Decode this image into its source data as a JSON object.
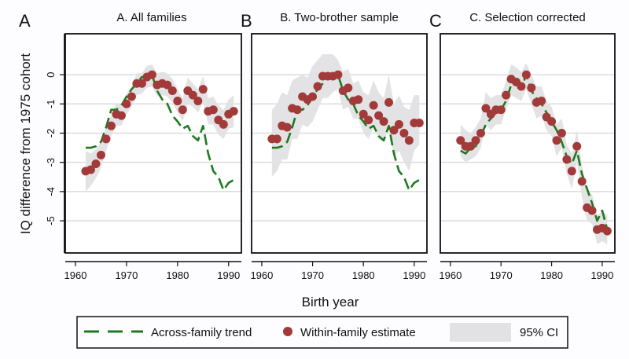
{
  "figure": {
    "ylabel": "IQ difference from 1975 cohort",
    "xlabel": "Birth year"
  },
  "legend": {
    "items": [
      {
        "label": "Across-family trend",
        "kind": "dashed-line",
        "color": "#1e7a1e"
      },
      {
        "label": "Within-family estimate",
        "kind": "marker",
        "color": "#a23a3a"
      },
      {
        "label": "95% CI",
        "kind": "area",
        "color": "#e2e2e4"
      }
    ]
  },
  "chart_data": [
    {
      "type": "line",
      "panel_letter": "A",
      "title": "A. All families",
      "xlabel": "Birth year",
      "ylabel": "IQ difference from 1975 cohort",
      "xlim": [
        1958,
        1992.5
      ],
      "ylim": [
        -6.1,
        1.4
      ],
      "xticks": [
        1960,
        1970,
        1980,
        1990
      ],
      "yticks": [
        0,
        -1,
        -2,
        -3,
        -4,
        -5
      ],
      "grid": true,
      "legend": "bottom",
      "x": [
        1962,
        1963,
        1964,
        1965,
        1966,
        1967,
        1968,
        1969,
        1970,
        1971,
        1972,
        1973,
        1974,
        1975,
        1976,
        1977,
        1978,
        1979,
        1980,
        1981,
        1982,
        1983,
        1984,
        1985,
        1986,
        1987,
        1988,
        1989,
        1990,
        1991
      ],
      "series": [
        {
          "name": "Across-family trend",
          "values": [
            -2.5,
            -2.5,
            -2.45,
            -2.3,
            -1.8,
            -1.2,
            -1.2,
            -1.05,
            -0.75,
            -0.5,
            -0.3,
            -0.08,
            -0.1,
            0,
            -0.55,
            -0.85,
            -1.0,
            -1.4,
            -1.6,
            -1.85,
            -1.75,
            -2.1,
            -2.25,
            -1.75,
            -2.7,
            -3.3,
            -3.5,
            -3.95,
            -3.7,
            -3.6
          ]
        },
        {
          "name": "Within-family estimate",
          "values": [
            -3.3,
            -3.25,
            -3.05,
            -2.75,
            -2.2,
            -1.75,
            -1.35,
            -1.4,
            -1.0,
            -0.75,
            -0.3,
            -0.3,
            -0.08,
            0,
            -0.35,
            -0.3,
            -0.35,
            -0.55,
            -0.9,
            -1.2,
            -0.55,
            -0.7,
            -0.9,
            -0.5,
            -1.25,
            -1.2,
            -1.55,
            -1.7,
            -1.35,
            -1.25
          ]
        },
        {
          "name": "95% CI lower",
          "values": [
            -4.0,
            -3.8,
            -3.55,
            -3.2,
            -2.6,
            -2.1,
            -1.75,
            -1.75,
            -1.35,
            -1.1,
            -0.7,
            -0.65,
            -0.45,
            -0.4,
            -0.75,
            -0.7,
            -0.75,
            -0.95,
            -1.3,
            -1.6,
            -1.0,
            -1.1,
            -1.3,
            -0.95,
            -1.7,
            -1.7,
            -2.05,
            -2.2,
            -1.85,
            -1.8
          ]
        },
        {
          "name": "95% CI upper",
          "values": [
            -2.6,
            -2.7,
            -2.55,
            -2.3,
            -1.8,
            -1.4,
            -0.95,
            -1.05,
            -0.65,
            -0.4,
            0.05,
            0.05,
            0.3,
            0.35,
            0.05,
            0.1,
            0.05,
            -0.15,
            -0.5,
            -0.8,
            -0.1,
            -0.3,
            -0.5,
            -0.05,
            -0.8,
            -0.75,
            -1.05,
            -1.2,
            -0.85,
            -0.7
          ]
        }
      ]
    },
    {
      "type": "line",
      "panel_letter": "B",
      "title": "B. Two-brother sample",
      "xlabel": "Birth year",
      "ylabel": "",
      "xlim": [
        1958,
        1992.5
      ],
      "ylim": [
        -6.1,
        1.4
      ],
      "xticks": [
        1960,
        1970,
        1980,
        1990
      ],
      "yticks": [
        0,
        -1,
        -2,
        -3,
        -4,
        -5
      ],
      "grid": true,
      "legend": "bottom",
      "x": [
        1962,
        1963,
        1964,
        1965,
        1966,
        1967,
        1968,
        1969,
        1970,
        1971,
        1972,
        1973,
        1974,
        1975,
        1976,
        1977,
        1978,
        1979,
        1980,
        1981,
        1982,
        1983,
        1984,
        1985,
        1986,
        1987,
        1988,
        1989,
        1990,
        1991
      ],
      "series": [
        {
          "name": "Across-family trend",
          "values": [
            -2.5,
            -2.5,
            -2.45,
            -2.3,
            -1.8,
            -1.2,
            -1.2,
            -1.05,
            -0.75,
            -0.5,
            -0.3,
            -0.08,
            -0.1,
            0,
            -0.55,
            -0.85,
            -1.0,
            -1.4,
            -1.6,
            -1.85,
            -1.75,
            -2.1,
            -2.25,
            -1.75,
            -2.7,
            -3.3,
            -3.5,
            -3.95,
            -3.7,
            -3.6
          ]
        },
        {
          "name": "Within-family estimate",
          "values": [
            -2.2,
            -2.2,
            -1.75,
            -1.8,
            -1.15,
            -1.2,
            -0.75,
            -0.85,
            -0.75,
            -0.4,
            -0.05,
            -0.05,
            -0.05,
            0,
            -0.55,
            -0.45,
            -0.9,
            -0.85,
            -1.35,
            -1.55,
            -1.05,
            -1.4,
            -1.6,
            -0.95,
            -1.9,
            -1.7,
            -2.0,
            -2.25,
            -1.65,
            -1.65
          ]
        },
        {
          "name": "95% CI lower",
          "values": [
            -3.5,
            -3.3,
            -2.9,
            -2.9,
            -2.2,
            -2.2,
            -1.7,
            -1.8,
            -1.6,
            -1.2,
            -0.8,
            -0.8,
            -0.6,
            -0.5,
            -1.2,
            -1.1,
            -1.5,
            -1.5,
            -2.0,
            -2.2,
            -1.8,
            -2.2,
            -2.3,
            -1.8,
            -2.8,
            -2.6,
            -3.0,
            -3.3,
            -2.6,
            -2.4
          ]
        },
        {
          "name": "95% CI upper",
          "values": [
            -1.2,
            -1.0,
            -0.6,
            -0.7,
            -0.2,
            -0.1,
            0.0,
            -0.1,
            0.3,
            0.5,
            0.7,
            0.7,
            0.7,
            0.5,
            0.1,
            0.2,
            -0.3,
            -0.2,
            -0.6,
            -0.7,
            -0.2,
            -0.6,
            -0.8,
            0.0,
            -1.0,
            -0.7,
            -1.1,
            -1.2,
            -0.7,
            -0.7
          ]
        }
      ]
    },
    {
      "type": "line",
      "panel_letter": "C",
      "title": "C. Selection corrected",
      "xlabel": "Birth year",
      "ylabel": "",
      "xlim": [
        1958,
        1992.5
      ],
      "ylim": [
        -6.1,
        1.4
      ],
      "xticks": [
        1960,
        1970,
        1980,
        1990
      ],
      "yticks": [
        0,
        -1,
        -2,
        -3,
        -4,
        -5
      ],
      "grid": true,
      "legend": "bottom",
      "x": [
        1962,
        1963,
        1964,
        1965,
        1966,
        1967,
        1968,
        1969,
        1970,
        1971,
        1972,
        1973,
        1974,
        1975,
        1976,
        1977,
        1978,
        1979,
        1980,
        1981,
        1982,
        1983,
        1984,
        1985,
        1986,
        1987,
        1988,
        1989,
        1990,
        1991
      ],
      "series": [
        {
          "name": "Across-family trend",
          "values": [
            -2.6,
            -2.7,
            -2.5,
            -2.45,
            -2.1,
            -1.7,
            -1.5,
            -1.3,
            -1.2,
            -0.9,
            -0.35,
            -0.35,
            -0.45,
            0,
            -0.55,
            -0.8,
            -1.0,
            -1.3,
            -1.6,
            -1.9,
            -2.3,
            -2.8,
            -3.05,
            -2.6,
            -3.4,
            -3.9,
            -4.4,
            -5.0,
            -4.65,
            -5.3
          ]
        },
        {
          "name": "Within-family estimate",
          "values": [
            -2.25,
            -2.45,
            -2.45,
            -2.25,
            -2.0,
            -1.15,
            -1.35,
            -1.2,
            -1.2,
            -0.7,
            -0.15,
            -0.25,
            -0.4,
            0,
            -0.45,
            -0.95,
            -0.9,
            -1.45,
            -1.6,
            -2.25,
            -2.0,
            -2.9,
            -3.3,
            -2.45,
            -3.65,
            -4.55,
            -4.65,
            -5.3,
            -5.25,
            -5.35
          ]
        },
        {
          "name": "95% CI lower",
          "values": [
            -2.8,
            -3.0,
            -2.9,
            -2.8,
            -2.5,
            -1.7,
            -1.9,
            -1.7,
            -1.7,
            -1.2,
            -0.7,
            -0.8,
            -0.9,
            -0.5,
            -1.0,
            -1.5,
            -1.4,
            -1.9,
            -2.1,
            -2.8,
            -2.5,
            -3.4,
            -3.9,
            -3.0,
            -4.2,
            -5.0,
            -5.1,
            -5.8,
            -5.7,
            -5.8
          ]
        },
        {
          "name": "95% CI upper",
          "values": [
            -1.7,
            -1.9,
            -2.0,
            -1.8,
            -1.5,
            -0.6,
            -0.8,
            -0.7,
            -0.7,
            -0.2,
            0.35,
            0.25,
            0.1,
            0.4,
            0.0,
            -0.4,
            -0.4,
            -0.9,
            -1.1,
            -1.7,
            -1.5,
            -2.4,
            -2.7,
            -1.9,
            -3.1,
            -4.0,
            -4.1,
            -4.8,
            -4.7,
            -4.8
          ]
        }
      ]
    }
  ]
}
